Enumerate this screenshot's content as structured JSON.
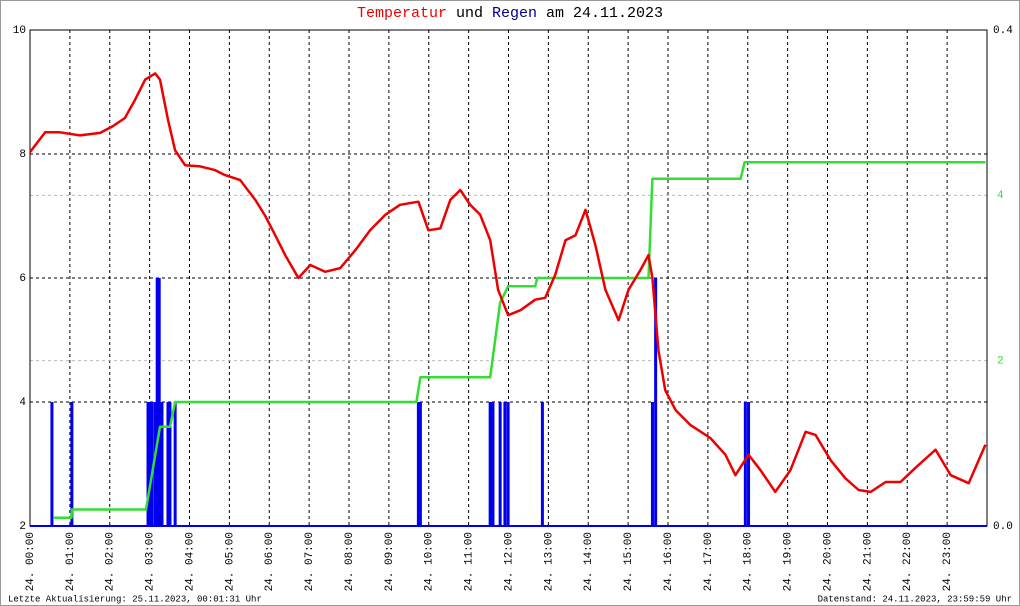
{
  "chart_data": {
    "type": "line",
    "title_words": [
      "und",
      "am 24.11.2023"
    ],
    "footer_left": "Letzte Aktualisierung: 25.11.2023, 00:01:31 Uhr",
    "footer_right": "Datenstand: 24.11.2023, 23:59:59 Uhr",
    "xlim": [
      0,
      24
    ],
    "xticks": [
      {
        "value": 0,
        "label": "24. 00:00"
      },
      {
        "value": 1,
        "label": "24. 01:00"
      },
      {
        "value": 2,
        "label": "24. 02:00"
      },
      {
        "value": 3,
        "label": "24. 03:00"
      },
      {
        "value": 4,
        "label": "24. 04:00"
      },
      {
        "value": 5,
        "label": "24. 05:00"
      },
      {
        "value": 6,
        "label": "24. 06:00"
      },
      {
        "value": 7,
        "label": "24. 07:00"
      },
      {
        "value": 8,
        "label": "24. 08:00"
      },
      {
        "value": 9,
        "label": "24. 09:00"
      },
      {
        "value": 10,
        "label": "24. 10:00"
      },
      {
        "value": 11,
        "label": "24. 11:00"
      },
      {
        "value": 12,
        "label": "24. 12:00"
      },
      {
        "value": 13,
        "label": "24. 13:00"
      },
      {
        "value": 14,
        "label": "24. 14:00"
      },
      {
        "value": 15,
        "label": "24. 15:00"
      },
      {
        "value": 16,
        "label": "24. 16:00"
      },
      {
        "value": 17,
        "label": "24. 17:00"
      },
      {
        "value": 18,
        "label": "24. 18:00"
      },
      {
        "value": 19,
        "label": "24. 19:00"
      },
      {
        "value": 20,
        "label": "24. 20:00"
      },
      {
        "value": 21,
        "label": "24. 21:00"
      },
      {
        "value": 22,
        "label": "24. 22:00"
      },
      {
        "value": 23,
        "label": "24. 23:00"
      }
    ],
    "ylim": [
      2,
      10
    ],
    "yticks": [
      2,
      4,
      6,
      8,
      10
    ],
    "y2lim": [
      0,
      0.4
    ],
    "y2ticks": [
      {
        "value": 0,
        "label": "0.0"
      },
      0.4
    ],
    "y3lim": [
      0,
      6
    ],
    "y3ticks": [
      2,
      4
    ],
    "grid": true,
    "series": [
      {
        "name": "Temperatur",
        "color": "#ee0000",
        "axis": "y",
        "x": [
          0,
          0.38,
          0.75,
          1.25,
          1.76,
          2.08,
          2.38,
          2.63,
          2.89,
          3.14,
          3.26,
          3.46,
          3.64,
          3.89,
          4.27,
          4.64,
          4.89,
          5.27,
          5.65,
          5.9,
          6.15,
          6.4,
          6.73,
          7.03,
          7.4,
          7.78,
          8.16,
          8.53,
          8.91,
          9.28,
          9.74,
          9.99,
          10.29,
          10.54,
          10.79,
          11.04,
          11.29,
          11.54,
          11.74,
          11.99,
          12.3,
          12.67,
          12.92,
          13.17,
          13.43,
          13.68,
          13.93,
          14.18,
          14.43,
          14.76,
          15.01,
          15.31,
          15.51,
          15.61,
          15.76,
          15.93,
          16.19,
          16.56,
          17.06,
          17.44,
          17.69,
          18.02,
          18.32,
          18.69,
          19.07,
          19.45,
          19.7,
          20.08,
          20.45,
          20.78,
          21.08,
          21.46,
          21.83,
          22.21,
          22.71,
          23.09,
          23.54,
          23.96
        ],
        "values": [
          8.03,
          8.35,
          8.35,
          8.3,
          8.34,
          8.45,
          8.58,
          8.87,
          9.2,
          9.3,
          9.2,
          8.55,
          8.06,
          7.82,
          7.8,
          7.74,
          7.66,
          7.58,
          7.26,
          7.0,
          6.69,
          6.37,
          6.0,
          6.21,
          6.1,
          6.16,
          6.45,
          6.77,
          7.02,
          7.18,
          7.23,
          6.77,
          6.8,
          7.26,
          7.42,
          7.18,
          7.02,
          6.61,
          5.81,
          5.4,
          5.48,
          5.65,
          5.68,
          6.05,
          6.61,
          6.69,
          7.1,
          6.53,
          5.81,
          5.32,
          5.81,
          6.13,
          6.37,
          6.0,
          4.84,
          4.19,
          3.87,
          3.63,
          3.42,
          3.15,
          2.82,
          3.15,
          2.9,
          2.55,
          2.9,
          3.52,
          3.47,
          3.06,
          2.77,
          2.58,
          2.55,
          2.71,
          2.71,
          2.94,
          3.23,
          2.82,
          2.69,
          3.31
        ]
      },
      {
        "name": "Regen",
        "color": "#0000ee",
        "axis": "y2",
        "style": "bar",
        "x": [
          0.55,
          1.05,
          2.96,
          3.01,
          3.06,
          3.14,
          3.19,
          3.24,
          3.31,
          3.46,
          3.51,
          3.64,
          9.74,
          9.79,
          11.54,
          11.61,
          11.79,
          11.91,
          11.99,
          12.85,
          15.61,
          15.69,
          17.94,
          18.02
        ],
        "values": [
          0.1,
          0.1,
          0.1,
          0.1,
          0.1,
          0.1,
          0.2,
          0.2,
          0.1,
          0.1,
          0.1,
          0.1,
          0.1,
          0.1,
          0.1,
          0.1,
          0.1,
          0.1,
          0.1,
          0.1,
          0.1,
          0.2,
          0.1,
          0.1
        ]
      },
      {
        "color": "#33dd33",
        "axis": "y3",
        "x": [
          0.58,
          1.04,
          1.05,
          2.91,
          3.26,
          3.51,
          3.64,
          9.69,
          9.79,
          11.54,
          11.79,
          11.99,
          12.67,
          12.72,
          15.51,
          15.61,
          17.82,
          17.92,
          23.96
        ],
        "values": [
          0.1,
          0.1,
          0.2,
          0.2,
          1.2,
          1.2,
          1.5,
          1.5,
          1.8,
          1.8,
          2.7,
          2.9,
          2.9,
          3.0,
          3.0,
          4.2,
          4.2,
          4.4,
          4.4
        ]
      }
    ]
  }
}
